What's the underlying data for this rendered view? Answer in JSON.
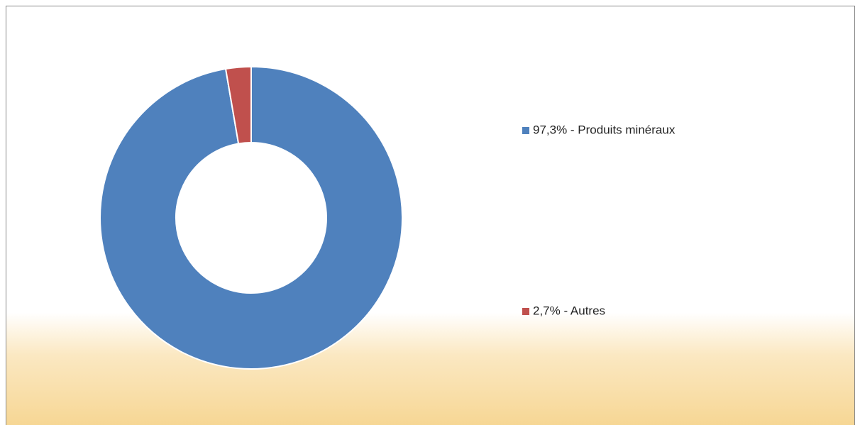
{
  "chart_data": {
    "type": "donut",
    "categories": [
      "97,3% - Produits minéraux",
      "2,7% - Autres"
    ],
    "values": [
      97.3,
      2.7
    ],
    "colors": [
      "#4f81bd",
      "#c0504d"
    ],
    "legend": "right"
  }
}
